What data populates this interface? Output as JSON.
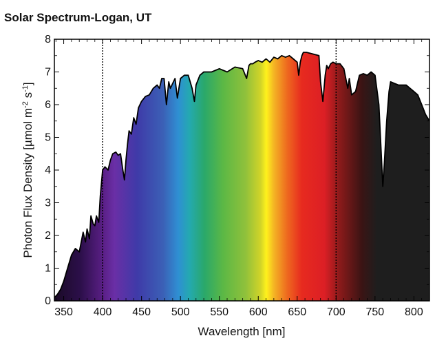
{
  "chart_data": {
    "type": "area",
    "title": "Solar Spectrum-Logan, UT",
    "xlabel": "Wavelength [nm]",
    "ylabel": {
      "prefix": "Photon Flux Density [µmol m",
      "sup1": "-2",
      "middle": " s",
      "sup2": "-1",
      "suffix": "]"
    },
    "xlim": [
      338,
      820
    ],
    "ylim": [
      0,
      8
    ],
    "xticks": [
      "350",
      "400",
      "450",
      "500",
      "550",
      "600",
      "650",
      "700",
      "750",
      "800"
    ],
    "xtick_values": [
      350,
      400,
      450,
      500,
      550,
      600,
      650,
      700,
      750,
      800
    ],
    "yticks": [
      "0",
      "1",
      "2",
      "3",
      "4",
      "5",
      "6",
      "7",
      "8"
    ],
    "ytick_values": [
      0,
      1,
      2,
      3,
      4,
      5,
      6,
      7,
      8
    ],
    "reference_lines_x": [
      400,
      700
    ],
    "fill": "visible-spectrum color gradient (violet to red), near-black beyond 700 nm",
    "series": [
      {
        "x": [
          338,
          342,
          346,
          350,
          355,
          360,
          365,
          370,
          375,
          378,
          380,
          383,
          385,
          388,
          390,
          392,
          395,
          397,
          400,
          403,
          407,
          410,
          413,
          417,
          420,
          423,
          426,
          428,
          430,
          432,
          434,
          437,
          440,
          443,
          446,
          450,
          455,
          460,
          465,
          470,
          473,
          476,
          479,
          482,
          485,
          487,
          490,
          493,
          496,
          500,
          505,
          510,
          515,
          518,
          520,
          525,
          530,
          540,
          550,
          560,
          570,
          580,
          585,
          588,
          590,
          593,
          596,
          600,
          605,
          610,
          615,
          620,
          625,
          630,
          635,
          640,
          645,
          650,
          652,
          654,
          656,
          658,
          662,
          670,
          678,
          680,
          683,
          686,
          688,
          690,
          693,
          696,
          700,
          705,
          710,
          715,
          717,
          720,
          725,
          730,
          735,
          740,
          745,
          750,
          755,
          757,
          760,
          762,
          765,
          768,
          770,
          780,
          790,
          800,
          805,
          810,
          815,
          820
        ],
        "y": [
          0.1,
          0.2,
          0.35,
          0.6,
          1.0,
          1.4,
          1.6,
          1.5,
          2.1,
          1.8,
          2.2,
          1.9,
          2.6,
          2.35,
          2.3,
          2.6,
          2.4,
          3.2,
          4.0,
          4.1,
          4.0,
          4.3,
          4.5,
          4.55,
          4.45,
          4.5,
          4.0,
          3.7,
          4.3,
          4.8,
          5.2,
          5.1,
          5.6,
          5.4,
          5.9,
          6.1,
          6.25,
          6.3,
          6.5,
          6.6,
          6.5,
          6.8,
          6.8,
          6.0,
          6.7,
          6.5,
          6.65,
          6.8,
          6.2,
          6.8,
          6.9,
          6.9,
          6.5,
          6.1,
          6.6,
          6.9,
          7.0,
          7.0,
          7.1,
          7.0,
          7.15,
          7.1,
          6.8,
          7.2,
          7.25,
          7.25,
          7.3,
          7.35,
          7.3,
          7.4,
          7.3,
          7.45,
          7.4,
          7.5,
          7.45,
          7.5,
          7.4,
          7.3,
          6.9,
          7.3,
          7.5,
          7.6,
          7.6,
          7.55,
          7.5,
          6.7,
          6.1,
          6.9,
          7.2,
          7.1,
          7.25,
          7.3,
          7.25,
          7.25,
          7.1,
          6.5,
          6.8,
          6.3,
          6.4,
          6.9,
          6.95,
          6.9,
          7.0,
          6.9,
          6.0,
          5.0,
          3.5,
          4.2,
          5.5,
          6.4,
          6.7,
          6.6,
          6.6,
          6.4,
          6.3,
          6.0,
          5.7,
          5.5
        ]
      }
    ]
  }
}
